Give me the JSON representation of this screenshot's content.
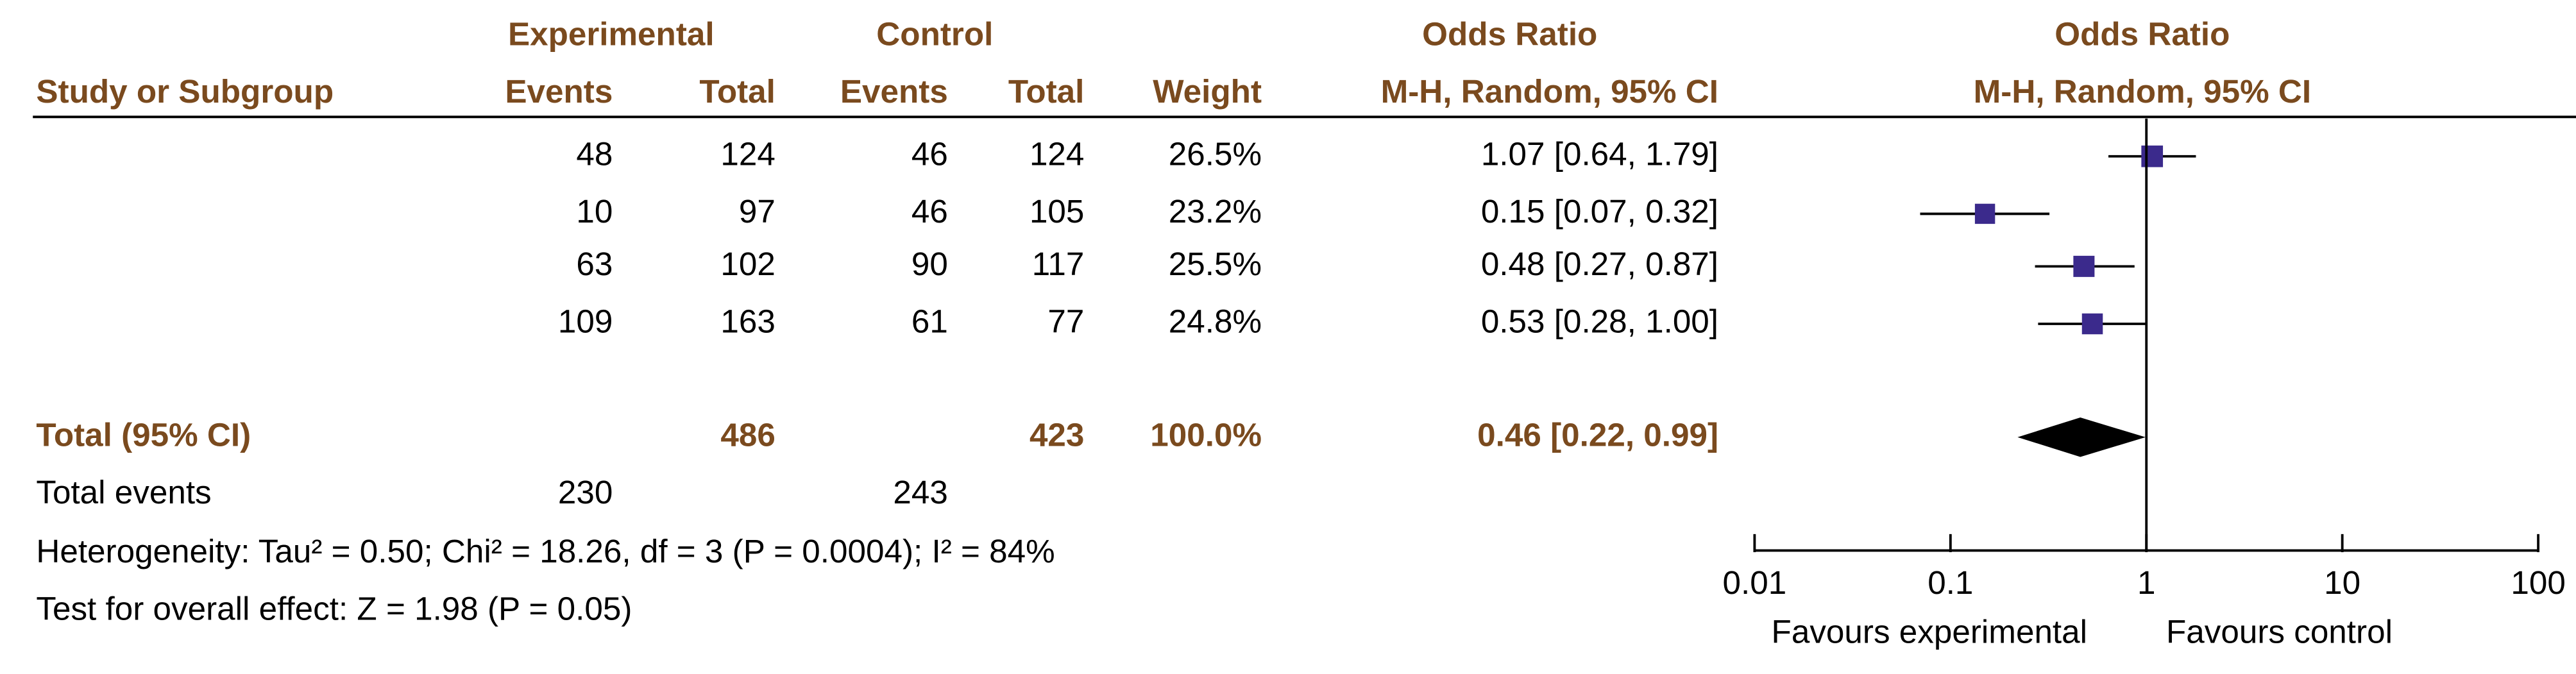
{
  "chart_data": {
    "type": "forest",
    "header": {
      "group1": "Experimental",
      "group2": "Control",
      "effect_title": "Odds Ratio",
      "plot_title": "Odds Ratio",
      "study_col": "Study or Subgroup",
      "events1": "Events",
      "total1": "Total",
      "events2": "Events",
      "total2": "Total",
      "weight": "Weight",
      "effect_method": "M-H, Random, 95% CI",
      "plot_method": "M-H, Random, 95% CI"
    },
    "studies": [
      {
        "name": null,
        "exp_events": 48,
        "exp_total": 124,
        "ctrl_events": 46,
        "ctrl_total": 124,
        "weight": 26.5,
        "weight_label": "26.5%",
        "or": 1.07,
        "ci_low": 0.64,
        "ci_high": 1.79,
        "ci_label": "1.07 [0.64, 1.79]"
      },
      {
        "name": null,
        "exp_events": 10,
        "exp_total": 97,
        "ctrl_events": 46,
        "ctrl_total": 105,
        "weight": 23.2,
        "weight_label": "23.2%",
        "or": 0.15,
        "ci_low": 0.07,
        "ci_high": 0.32,
        "ci_label": "0.15 [0.07, 0.32]"
      },
      {
        "name": null,
        "exp_events": 63,
        "exp_total": 102,
        "ctrl_events": 90,
        "ctrl_total": 117,
        "weight": 25.5,
        "weight_label": "25.5%",
        "or": 0.48,
        "ci_low": 0.27,
        "ci_high": 0.87,
        "ci_label": "0.48 [0.27, 0.87]"
      },
      {
        "name": null,
        "exp_events": 109,
        "exp_total": 163,
        "ctrl_events": 61,
        "ctrl_total": 77,
        "weight": 24.8,
        "weight_label": "24.8%",
        "or": 0.53,
        "ci_low": 0.28,
        "ci_high": 1.0,
        "ci_label": "0.53 [0.28, 1.00]"
      }
    ],
    "total": {
      "label": "Total (95% CI)",
      "exp_total": 486,
      "ctrl_total": 423,
      "weight": 100.0,
      "weight_label": "100.0%",
      "or": 0.46,
      "ci_low": 0.22,
      "ci_high": 0.99,
      "ci_label": "0.46 [0.22, 0.99]"
    },
    "total_events": {
      "label": "Total events",
      "exp_events": 230,
      "ctrl_events": 243
    },
    "heterogeneity": "Heterogeneity: Tau² = 0.50; Chi² = 18.26, df = 3 (P = 0.0004); I² = 84%",
    "overall_effect": "Test for overall effect: Z = 1.98 (P = 0.05)",
    "xscale": "log",
    "xlim": [
      0.01,
      100
    ],
    "xticks": [
      0.01,
      0.1,
      1,
      10,
      100
    ],
    "reference_line": 1,
    "xlabel_left": "Favours experimental",
    "xlabel_right": "Favours control",
    "marker_color": "#3b2a8c",
    "diamond_color": "#000000"
  }
}
